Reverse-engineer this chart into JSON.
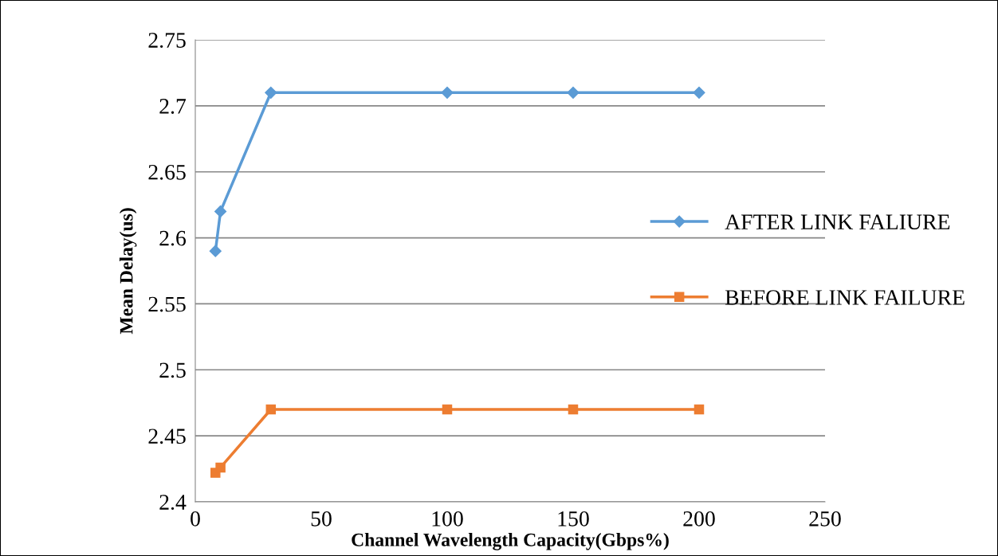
{
  "chart_data": {
    "type": "line",
    "xlabel": "Channel Wavelength Capacity(Gbps%)",
    "ylabel": "Mean Delay(us)",
    "xlim": [
      0,
      250
    ],
    "xticks": [
      0,
      50,
      100,
      150,
      200,
      250
    ],
    "ylim": [
      2.4,
      2.75
    ],
    "yticks": [
      2.4,
      2.45,
      2.5,
      2.55,
      2.6,
      2.65,
      2.7,
      2.75
    ],
    "grid": "y",
    "legend": "right",
    "series": [
      {
        "name": "AFTER LINK FALIURE",
        "color": "#5b9bd5",
        "marker": "diamond",
        "x": [
          8,
          10,
          30,
          100,
          150,
          200
        ],
        "values": [
          2.59,
          2.62,
          2.71,
          2.71,
          2.71,
          2.71
        ]
      },
      {
        "name": "BEFORE LINK FAILURE",
        "color": "#ed7d31",
        "marker": "square",
        "x": [
          8,
          10,
          30,
          100,
          150,
          200
        ],
        "values": [
          2.422,
          2.426,
          2.47,
          2.47,
          2.47,
          2.47
        ]
      }
    ]
  }
}
